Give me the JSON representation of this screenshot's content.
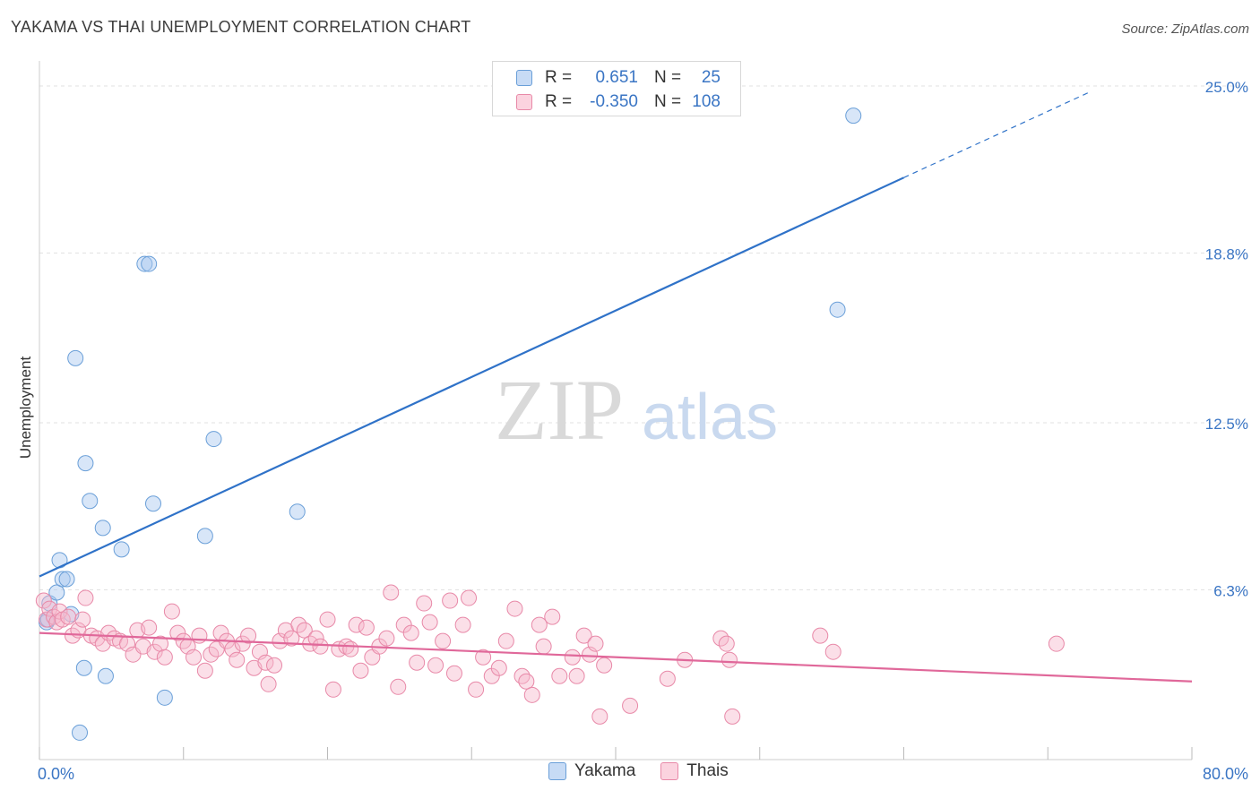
{
  "header": {
    "title": "YAKAMA VS THAI UNEMPLOYMENT CORRELATION CHART",
    "source": "Source: ZipAtlas.com"
  },
  "watermark": {
    "zip": "ZIP",
    "atlas": "atlas"
  },
  "stats": [
    {
      "r_label": "R =",
      "r_value": "0.651",
      "n_label": "N =",
      "n_value": "25",
      "color": "#a9c8f0"
    },
    {
      "r_label": "R =",
      "r_value": "-0.350",
      "n_label": "N =",
      "n_value": "108",
      "color": "#f7b8cb"
    }
  ],
  "legend": [
    {
      "name": "Yakama",
      "color": "#a9c8f0"
    },
    {
      "name": "Thais",
      "color": "#f7b8cb"
    }
  ],
  "chart_data": {
    "type": "scatter",
    "ylabel": "Unemployment",
    "xlim": [
      0,
      80
    ],
    "ylim": [
      0,
      25.6
    ],
    "x_tick_labels": [
      "0.0%",
      "80.0%"
    ],
    "y_ticks": [
      6.3,
      12.5,
      18.8,
      25.0
    ],
    "y_tick_labels": [
      "6.3%",
      "12.5%",
      "18.8%",
      "25.0%"
    ],
    "grid": true,
    "series": [
      {
        "name": "Yakama",
        "color": "#a9c8f0",
        "stroke": "#6a9fd8",
        "trend": {
          "x0": 0,
          "y0": 6.8,
          "x1": 60,
          "y1": 21.6,
          "color": "#2f72c8",
          "dashed_to_x": 73,
          "dashed_to_y": 24.8
        },
        "points": [
          [
            0.5,
            5.1
          ],
          [
            0.7,
            5.8
          ],
          [
            1.2,
            6.2
          ],
          [
            1.4,
            7.4
          ],
          [
            1.6,
            6.7
          ],
          [
            1.9,
            6.7
          ],
          [
            2.2,
            5.4
          ],
          [
            2.5,
            14.9
          ],
          [
            3.1,
            3.4
          ],
          [
            3.2,
            11.0
          ],
          [
            3.5,
            9.6
          ],
          [
            4.4,
            8.6
          ],
          [
            4.6,
            3.1
          ],
          [
            5.7,
            7.8
          ],
          [
            7.3,
            18.4
          ],
          [
            7.6,
            18.4
          ],
          [
            7.9,
            9.5
          ],
          [
            8.7,
            2.3
          ],
          [
            11.5,
            8.3
          ],
          [
            12.1,
            11.9
          ],
          [
            17.9,
            9.2
          ],
          [
            55.4,
            16.7
          ],
          [
            56.5,
            23.9
          ],
          [
            0.6,
            5.2
          ],
          [
            2.8,
            1.0
          ]
        ]
      },
      {
        "name": "Thais",
        "color": "#f7b8cb",
        "stroke": "#e889a8",
        "trend": {
          "x0": 0,
          "y0": 4.7,
          "x1": 80,
          "y1": 2.9,
          "color": "#e0689a"
        },
        "points": [
          [
            0.3,
            5.9
          ],
          [
            0.5,
            5.2
          ],
          [
            0.7,
            5.6
          ],
          [
            1.0,
            5.3
          ],
          [
            1.2,
            5.1
          ],
          [
            1.4,
            5.5
          ],
          [
            1.6,
            5.2
          ],
          [
            2.0,
            5.3
          ],
          [
            2.3,
            4.6
          ],
          [
            2.7,
            4.8
          ],
          [
            3.0,
            5.2
          ],
          [
            3.2,
            6.0
          ],
          [
            3.6,
            4.6
          ],
          [
            4.0,
            4.5
          ],
          [
            4.4,
            4.3
          ],
          [
            4.8,
            4.7
          ],
          [
            5.2,
            4.5
          ],
          [
            5.6,
            4.4
          ],
          [
            6.1,
            4.3
          ],
          [
            6.5,
            3.9
          ],
          [
            6.8,
            4.8
          ],
          [
            7.2,
            4.2
          ],
          [
            7.6,
            4.9
          ],
          [
            8.0,
            4.0
          ],
          [
            8.4,
            4.3
          ],
          [
            8.7,
            3.8
          ],
          [
            9.2,
            5.5
          ],
          [
            9.6,
            4.7
          ],
          [
            10.0,
            4.4
          ],
          [
            10.3,
            4.2
          ],
          [
            10.7,
            3.8
          ],
          [
            11.1,
            4.6
          ],
          [
            11.5,
            3.3
          ],
          [
            11.9,
            3.9
          ],
          [
            12.3,
            4.1
          ],
          [
            12.6,
            4.7
          ],
          [
            13.0,
            4.4
          ],
          [
            13.4,
            4.1
          ],
          [
            13.7,
            3.7
          ],
          [
            14.1,
            4.3
          ],
          [
            14.5,
            4.6
          ],
          [
            14.9,
            3.4
          ],
          [
            15.3,
            4.0
          ],
          [
            15.7,
            3.6
          ],
          [
            15.9,
            2.8
          ],
          [
            16.3,
            3.5
          ],
          [
            16.7,
            4.4
          ],
          [
            17.1,
            4.8
          ],
          [
            17.5,
            4.5
          ],
          [
            18.0,
            5.0
          ],
          [
            18.4,
            4.8
          ],
          [
            18.8,
            4.3
          ],
          [
            19.2,
            4.5
          ],
          [
            19.5,
            4.2
          ],
          [
            20.0,
            5.2
          ],
          [
            20.4,
            2.6
          ],
          [
            20.8,
            4.1
          ],
          [
            21.3,
            4.2
          ],
          [
            21.6,
            4.1
          ],
          [
            22.0,
            5.0
          ],
          [
            22.3,
            3.3
          ],
          [
            22.7,
            4.9
          ],
          [
            23.1,
            3.8
          ],
          [
            23.6,
            4.2
          ],
          [
            24.1,
            4.5
          ],
          [
            24.4,
            6.2
          ],
          [
            24.9,
            2.7
          ],
          [
            25.3,
            5.0
          ],
          [
            25.8,
            4.7
          ],
          [
            26.2,
            3.6
          ],
          [
            26.7,
            5.8
          ],
          [
            27.1,
            5.1
          ],
          [
            27.5,
            3.5
          ],
          [
            28.0,
            4.4
          ],
          [
            28.5,
            5.9
          ],
          [
            28.8,
            3.2
          ],
          [
            29.4,
            5.0
          ],
          [
            29.8,
            6.0
          ],
          [
            30.3,
            2.6
          ],
          [
            30.8,
            3.8
          ],
          [
            31.4,
            3.1
          ],
          [
            31.9,
            3.4
          ],
          [
            32.4,
            4.4
          ],
          [
            33.0,
            5.6
          ],
          [
            33.5,
            3.1
          ],
          [
            33.8,
            2.9
          ],
          [
            34.2,
            2.4
          ],
          [
            34.7,
            5.0
          ],
          [
            35.0,
            4.2
          ],
          [
            35.6,
            5.3
          ],
          [
            36.1,
            3.1
          ],
          [
            37.0,
            3.8
          ],
          [
            37.3,
            3.1
          ],
          [
            37.8,
            4.6
          ],
          [
            38.2,
            3.9
          ],
          [
            38.6,
            4.3
          ],
          [
            39.2,
            3.5
          ],
          [
            43.6,
            3.0
          ],
          [
            44.8,
            3.7
          ],
          [
            47.3,
            4.5
          ],
          [
            47.7,
            4.3
          ],
          [
            47.9,
            3.7
          ],
          [
            48.1,
            1.6
          ],
          [
            54.2,
            4.6
          ],
          [
            55.1,
            4.0
          ],
          [
            70.6,
            4.3
          ],
          [
            38.9,
            1.6
          ],
          [
            41.0,
            2.0
          ]
        ]
      }
    ]
  }
}
